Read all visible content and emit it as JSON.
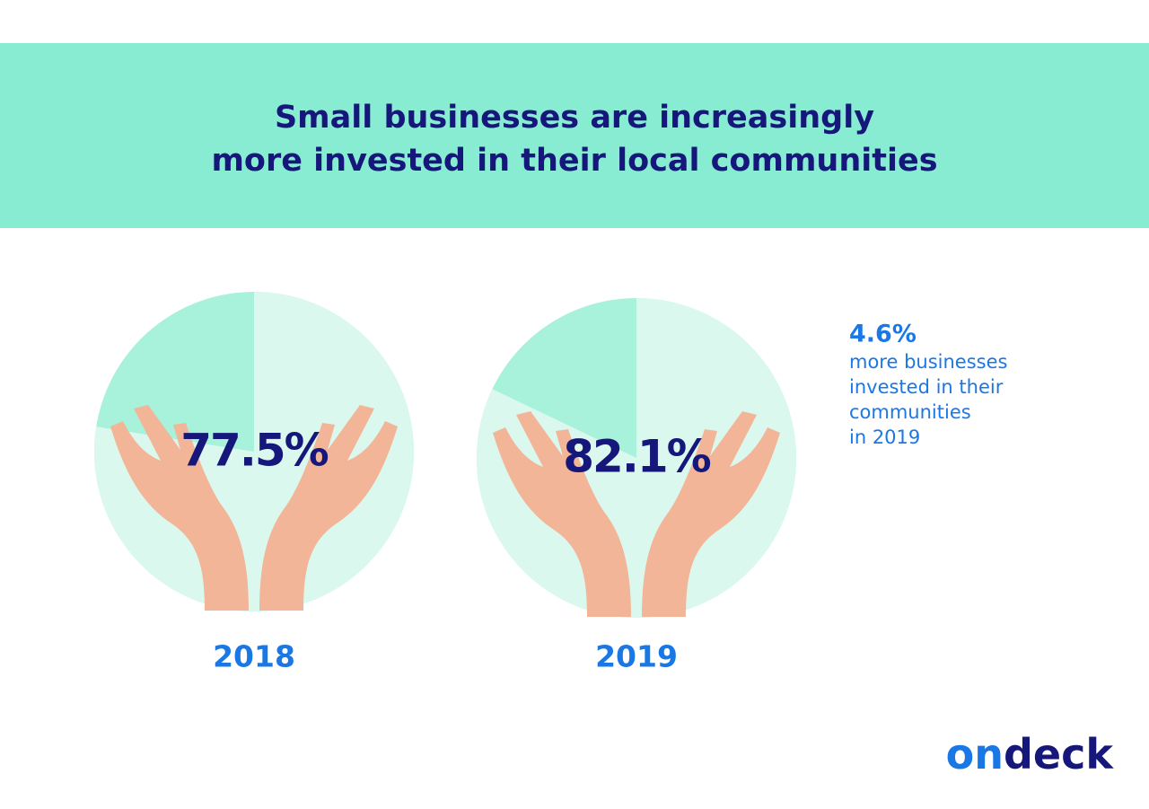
{
  "title": [
    "Small businesses are increasingly",
    "more invested in their local communities"
  ],
  "chart_data": [
    {
      "type": "pie",
      "title": "2018",
      "values": [
        77.5
      ],
      "value_labels": [
        "77.5%"
      ],
      "color": "#dbf8ef",
      "rest_color": "#a8f1db"
    },
    {
      "type": "pie",
      "title": "2019",
      "values": [
        82.1
      ],
      "value_labels": [
        "82.1%"
      ],
      "color": "#dbf8ef",
      "rest_color": "#a8f1db"
    }
  ],
  "annotation": {
    "value": "4.6%",
    "lines": [
      "more businesses",
      "invested in their",
      "communities",
      "in 2019"
    ]
  },
  "logo": [
    "on",
    "deck"
  ]
}
